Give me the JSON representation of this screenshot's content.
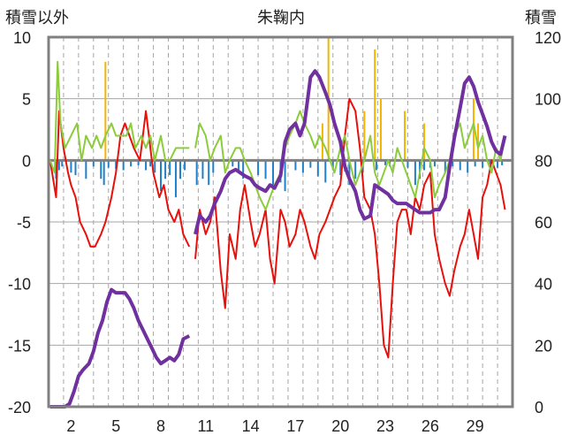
{
  "chart_data": {
    "type": "line",
    "title": "朱鞠内",
    "left_axis_label": "積雪以外",
    "right_axis_label": "積雪",
    "left_ylim": [
      -20,
      10
    ],
    "left_yticks": [
      10,
      5,
      0,
      -5,
      -10,
      -15,
      -20
    ],
    "right_ylim": [
      0,
      120
    ],
    "right_yticks": [
      120,
      100,
      80,
      60,
      40,
      20,
      0
    ],
    "xlim": [
      0.5,
      31.5
    ],
    "xticks": [
      2,
      5,
      8,
      11,
      14,
      17,
      20,
      23,
      26,
      29
    ],
    "grid": true,
    "colors": {
      "red": "#e8100a",
      "green": "#8ccc3c",
      "purple": "#7030a0",
      "blue": "#1f7fc8",
      "orange": "#f5b400",
      "zero": "#808080",
      "grid": "#a6a6a6",
      "frame": "#808080"
    },
    "series": [
      {
        "color": "red",
        "axis": "left",
        "x": [
          0.6,
          1.0,
          1.2,
          1.5,
          1.8,
          2.0,
          2.3,
          2.6,
          3.0,
          3.3,
          3.6,
          4.0,
          4.3,
          4.7,
          5.0,
          5.3,
          5.6,
          5.9,
          6.2,
          6.6,
          7.0,
          7.2,
          7.5,
          7.9,
          8.2,
          8.5,
          8.9,
          9.2,
          9.5,
          9.9
        ],
        "y": [
          0,
          -3,
          4,
          1,
          -1,
          -2,
          -3,
          -5,
          -6,
          -7,
          -7,
          -6,
          -5,
          -3,
          -1,
          2,
          3,
          2,
          1,
          0,
          4,
          2,
          -1,
          -3,
          -2,
          -4,
          -5,
          -4,
          -6,
          -7
        ]
      },
      {
        "color": "red",
        "axis": "left",
        "x": [
          10.3,
          10.6,
          11.0,
          11.3,
          11.6,
          12.0,
          12.3,
          12.6,
          13.0,
          13.3,
          13.6,
          14.0,
          14.3,
          14.6,
          15.0,
          15.3,
          15.6,
          16.0,
          16.3,
          16.6,
          17.0,
          17.3,
          17.6,
          18.0,
          18.3,
          18.6,
          19.0,
          19.3,
          19.6,
          20.0,
          20.3,
          20.6,
          21.0,
          21.3,
          21.6,
          22.0,
          22.3,
          22.6,
          22.9,
          23.2,
          23.5,
          23.8,
          24.1,
          24.4,
          24.7,
          25.0,
          25.3,
          25.6,
          26.0,
          26.3,
          26.6,
          27.0,
          27.3,
          27.6,
          28.0,
          28.3,
          28.6,
          28.9,
          29.2,
          29.5,
          29.8,
          30.1,
          30.4,
          30.7,
          31.0
        ],
        "y": [
          -8,
          -4,
          -6,
          -5,
          -3,
          -9,
          -12,
          -6,
          -8,
          -4,
          -2,
          -5,
          -7,
          -6,
          -4,
          -8,
          -10,
          -4,
          -5,
          -7,
          -6,
          -4,
          -5,
          -7,
          -8,
          -6,
          -5,
          -4,
          -3,
          -2,
          2,
          5,
          4,
          1,
          -3,
          -4,
          -6,
          -10,
          -15,
          -16,
          -10,
          -5,
          -4,
          -4,
          -6,
          -3,
          -4,
          -2,
          -1,
          -6,
          -8,
          -10,
          -11,
          -9,
          -7,
          -6,
          -4,
          -6,
          -8,
          -3,
          -2,
          0,
          -1,
          -2,
          -4
        ]
      },
      {
        "color": "green",
        "axis": "left",
        "x": [
          0.6,
          0.9,
          1.1,
          1.3,
          1.6,
          2.0,
          2.4,
          2.7,
          3.0,
          3.4,
          3.7,
          4.0,
          4.3,
          4.7,
          5.0,
          5.3,
          5.7,
          6.0,
          6.3,
          6.7,
          7.0,
          7.3,
          7.6,
          8.0,
          8.3,
          8.6,
          9.0,
          9.3,
          9.6,
          9.9
        ],
        "y": [
          0,
          -1,
          8,
          3,
          1,
          2,
          3,
          0,
          2,
          1,
          2,
          1,
          2,
          3,
          2,
          2,
          2,
          3,
          1,
          2,
          1,
          2,
          0,
          2,
          0,
          0,
          1,
          1,
          1,
          1
        ]
      },
      {
        "color": "green",
        "axis": "left",
        "x": [
          10.3,
          10.6,
          11.0,
          11.3,
          11.6,
          12.0,
          12.3,
          12.6,
          13.0,
          13.3,
          13.6,
          14.0,
          14.3,
          14.6,
          15.0,
          15.3,
          15.6,
          16.0,
          16.3,
          16.6,
          17.0,
          17.3,
          17.6,
          18.0,
          18.3,
          18.6,
          19.0,
          19.3,
          19.6,
          20.0,
          20.3,
          20.6,
          21.0,
          21.3,
          21.6,
          22.0,
          22.3,
          22.6,
          22.9,
          23.2,
          23.5,
          23.8,
          24.1,
          24.4,
          24.7,
          25.0,
          25.3,
          25.6,
          26.0,
          26.3,
          26.6,
          27.0,
          27.3,
          27.6,
          28.0,
          28.3,
          28.6,
          28.9,
          29.2,
          29.5,
          29.8,
          30.1,
          30.4,
          30.7,
          31.0
        ],
        "y": [
          1,
          3,
          2,
          0,
          1,
          2,
          -1,
          0,
          1,
          1,
          0,
          -1,
          -2,
          -3,
          -4,
          -3,
          -2,
          -1,
          1,
          2,
          3,
          4,
          3,
          2,
          1,
          2,
          1,
          0,
          -1,
          1,
          2,
          0,
          -2,
          -1,
          0,
          2,
          -1,
          -2,
          -1,
          0,
          -1,
          1,
          0,
          -1,
          -2,
          -3,
          -1,
          1,
          0,
          -3,
          -2,
          -1,
          0,
          2,
          3,
          1,
          2,
          3,
          1,
          2,
          0,
          -1,
          1,
          0,
          2
        ]
      },
      {
        "color": "purple",
        "axis": "right",
        "x": [
          0.6,
          1.0,
          1.3,
          1.6,
          1.9,
          2.2,
          2.5,
          2.8,
          3.0,
          3.2,
          3.5,
          3.8,
          4.1,
          4.4,
          4.7,
          5.0,
          5.3,
          5.6,
          5.9,
          6.2,
          6.5,
          6.8,
          7.1,
          7.4,
          7.7,
          8.0,
          8.3,
          8.6,
          8.9,
          9.2,
          9.5,
          9.9
        ],
        "y": [
          0,
          0,
          0,
          0,
          1,
          5,
          10,
          12,
          13,
          14,
          18,
          24,
          28,
          34,
          38,
          37,
          37,
          37,
          35,
          32,
          28,
          25,
          22,
          19,
          16,
          14,
          15,
          16,
          15,
          17,
          22,
          23
        ]
      },
      {
        "color": "purple",
        "axis": "right",
        "x": [
          10.3,
          10.6,
          11.0,
          11.3,
          11.6,
          12.0,
          12.3,
          12.6,
          13.0,
          13.3,
          13.6,
          14.0,
          14.3,
          14.6,
          15.0,
          15.3,
          15.6,
          16.0,
          16.3,
          16.6,
          17.0,
          17.3,
          17.6,
          18.0,
          18.3,
          18.6,
          19.0,
          19.3,
          19.6,
          20.0,
          20.3,
          20.6,
          21.0,
          21.3,
          21.6,
          22.0,
          22.3,
          22.6,
          22.9,
          23.2,
          23.5,
          23.8,
          24.1,
          24.4,
          24.7,
          25.0,
          25.3,
          25.6,
          26.0,
          26.3,
          26.6,
          27.0,
          27.3,
          27.6,
          28.0,
          28.3,
          28.6,
          28.9,
          29.2,
          29.5,
          29.8,
          30.1,
          30.4,
          30.7,
          31.0
        ],
        "y": [
          56,
          62,
          60,
          62,
          66,
          70,
          74,
          76,
          77,
          76,
          75,
          74,
          72,
          71,
          70,
          72,
          71,
          75,
          86,
          90,
          92,
          88,
          92,
          107,
          109,
          107,
          102,
          98,
          92,
          86,
          78,
          74,
          70,
          64,
          61,
          62,
          72,
          71,
          70,
          69,
          67,
          66,
          66,
          66,
          65,
          64,
          63,
          63,
          63,
          64,
          64,
          68,
          78,
          87,
          97,
          105,
          107,
          104,
          99,
          95,
          91,
          86,
          83,
          82,
          88
        ]
      },
      {
        "color": "blue",
        "axis": "left",
        "kind": "bar",
        "x": [
          1,
          1.2,
          1.4,
          2,
          2.3,
          3,
          3.5,
          4,
          4.2,
          4.5,
          5,
          5.5,
          6,
          6.5,
          7,
          7.3,
          7.6,
          8,
          8.3,
          8.6,
          9,
          9.3,
          9.6,
          10.4,
          10.8,
          11.2,
          11.5,
          12.8,
          13.2,
          13.5,
          14.5,
          15,
          15.5,
          16,
          16.3,
          17,
          17.5,
          18,
          18.5,
          19,
          19.5,
          20,
          20.3,
          20.6,
          21,
          21.5,
          22.4,
          23,
          23.3,
          24.5,
          25,
          25.3,
          25.6,
          26,
          26.3,
          27,
          27.5,
          28,
          28.5,
          29,
          29.5,
          30,
          30.5,
          30.8
        ],
        "y": [
          -1.5,
          -0.8,
          -0.5,
          -1,
          -1.2,
          -1.5,
          -0.5,
          -1.5,
          -2,
          -0.6,
          -0.7,
          -0.8,
          -0.5,
          -0.4,
          -0.8,
          -0.5,
          -1,
          -2.5,
          -1.5,
          -1.2,
          -3,
          -1.5,
          -0.8,
          -2,
          -1.5,
          -2,
          -1,
          -0.5,
          -1,
          -1.5,
          -1.2,
          -1.5,
          -2,
          -1.8,
          -2.5,
          -0.8,
          -1,
          -0.6,
          -1.3,
          -1.8,
          -0.8,
          -1.2,
          -0.9,
          -2,
          -1.5,
          -1,
          -0.8,
          -0.4,
          -0.5,
          -0.6,
          -2,
          -1.5,
          -0.8,
          -0.6,
          -0.5,
          -1,
          -0.5,
          -0.8,
          -1,
          -0.5,
          -0.6,
          -0.3,
          -0.6,
          -0.4
        ]
      },
      {
        "color": "orange",
        "axis": "left",
        "kind": "bar",
        "x": [
          4.3,
          18.8,
          19.2,
          21.6,
          22.3,
          22.7,
          24.3,
          25.6,
          28.9,
          29.2
        ],
        "y": [
          8,
          3,
          10,
          4,
          9,
          5,
          4,
          3,
          5,
          3
        ]
      }
    ]
  }
}
